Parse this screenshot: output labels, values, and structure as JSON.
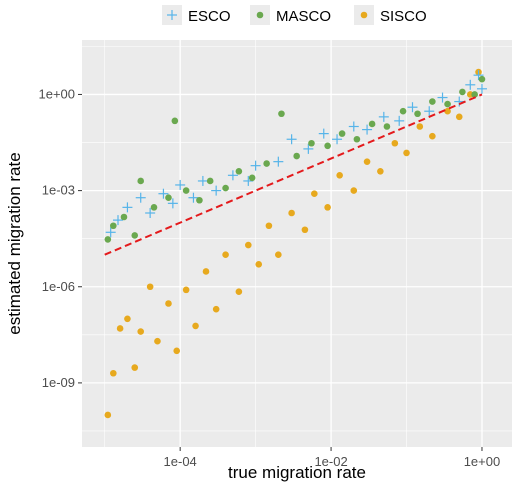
{
  "chart_data": {
    "type": "scatter",
    "title": "",
    "xlabel": "true migration rate",
    "ylabel": "estimated migration rate",
    "x_scale": "log10",
    "y_scale": "log10",
    "xlim": [
      5e-06,
      2.5
    ],
    "ylim": [
      1e-11,
      50.0
    ],
    "x_ticks": [
      {
        "value": 0.0001,
        "label": "1e-04"
      },
      {
        "value": 0.01,
        "label": "1e-02"
      },
      {
        "value": 1,
        "label": "1e+00"
      }
    ],
    "y_ticks": [
      {
        "value": 1e-09,
        "label": "1e-09"
      },
      {
        "value": 1e-06,
        "label": "1e-06"
      },
      {
        "value": 0.001,
        "label": "1e-03"
      },
      {
        "value": 1,
        "label": "1e+00"
      }
    ],
    "grid": true,
    "legend_position": "top",
    "reference_line": {
      "type": "identity",
      "style": "dashed",
      "color": "#e41a1c"
    },
    "series": [
      {
        "name": "ESCO",
        "marker": "cross",
        "color": "#56B4E9",
        "points": [
          [
            1.2e-05,
            5e-05
          ],
          [
            1.5e-05,
            0.00012
          ],
          [
            2e-05,
            0.0003
          ],
          [
            3e-05,
            0.0006
          ],
          [
            4e-05,
            0.0002
          ],
          [
            6e-05,
            0.0008
          ],
          [
            8e-05,
            0.0004
          ],
          [
            0.0001,
            0.0015
          ],
          [
            0.00015,
            0.0006
          ],
          [
            0.0002,
            0.002
          ],
          [
            0.0003,
            0.001
          ],
          [
            0.0005,
            0.003
          ],
          [
            0.0008,
            0.002
          ],
          [
            0.001,
            0.006
          ],
          [
            0.002,
            0.008
          ],
          [
            0.003,
            0.04
          ],
          [
            0.005,
            0.02
          ],
          [
            0.008,
            0.06
          ],
          [
            0.012,
            0.04
          ],
          [
            0.02,
            0.1
          ],
          [
            0.03,
            0.08
          ],
          [
            0.05,
            0.2
          ],
          [
            0.08,
            0.15
          ],
          [
            0.12,
            0.4
          ],
          [
            0.2,
            0.3
          ],
          [
            0.3,
            0.8
          ],
          [
            0.5,
            0.6
          ],
          [
            0.7,
            2
          ],
          [
            0.9,
            4
          ],
          [
            1,
            1.5
          ]
        ]
      },
      {
        "name": "MASCO",
        "marker": "circle",
        "color": "#6aa84f",
        "points": [
          [
            1.1e-05,
            3e-05
          ],
          [
            1.3e-05,
            8e-05
          ],
          [
            1.8e-05,
            0.00015
          ],
          [
            2.5e-05,
            4e-05
          ],
          [
            3e-05,
            0.002
          ],
          [
            4.5e-05,
            0.0003
          ],
          [
            7e-05,
            0.0006
          ],
          [
            8.5e-05,
            0.15
          ],
          [
            0.00012,
            0.001
          ],
          [
            0.00018,
            0.0005
          ],
          [
            0.00025,
            0.002
          ],
          [
            0.0004,
            0.0012
          ],
          [
            0.0006,
            0.004
          ],
          [
            0.0009,
            0.0025
          ],
          [
            0.0014,
            0.007
          ],
          [
            0.0022,
            0.25
          ],
          [
            0.0035,
            0.012
          ],
          [
            0.0055,
            0.03
          ],
          [
            0.009,
            0.025
          ],
          [
            0.014,
            0.06
          ],
          [
            0.022,
            0.04
          ],
          [
            0.035,
            0.12
          ],
          [
            0.055,
            0.1
          ],
          [
            0.09,
            0.3
          ],
          [
            0.14,
            0.25
          ],
          [
            0.22,
            0.6
          ],
          [
            0.35,
            0.5
          ],
          [
            0.55,
            1.2
          ],
          [
            0.8,
            1
          ],
          [
            1,
            3
          ]
        ]
      },
      {
        "name": "SISCO",
        "marker": "circle",
        "color": "#E7A91E",
        "points": [
          [
            1.1e-05,
            1e-10
          ],
          [
            1.3e-05,
            2e-09
          ],
          [
            1.6e-05,
            5e-08
          ],
          [
            2e-05,
            1e-07
          ],
          [
            2.5e-05,
            3e-09
          ],
          [
            3e-05,
            4e-08
          ],
          [
            4e-05,
            1e-06
          ],
          [
            5e-05,
            2e-08
          ],
          [
            7e-05,
            3e-07
          ],
          [
            9e-05,
            1e-08
          ],
          [
            0.00012,
            8e-07
          ],
          [
            0.00016,
            6e-08
          ],
          [
            0.00022,
            3e-06
          ],
          [
            0.0003,
            2e-07
          ],
          [
            0.0004,
            1e-05
          ],
          [
            0.0006,
            7e-07
          ],
          [
            0.0008,
            2e-05
          ],
          [
            0.0011,
            5e-06
          ],
          [
            0.0015,
            8e-05
          ],
          [
            0.002,
            1e-05
          ],
          [
            0.003,
            0.0002
          ],
          [
            0.0045,
            6e-05
          ],
          [
            0.006,
            0.0008
          ],
          [
            0.009,
            0.0003
          ],
          [
            0.013,
            0.003
          ],
          [
            0.02,
            0.001
          ],
          [
            0.03,
            0.008
          ],
          [
            0.045,
            0.004
          ],
          [
            0.07,
            0.03
          ],
          [
            0.1,
            0.015
          ],
          [
            0.15,
            0.1
          ],
          [
            0.22,
            0.05
          ],
          [
            0.35,
            0.3
          ],
          [
            0.5,
            0.2
          ],
          [
            0.7,
            1
          ],
          [
            0.9,
            5
          ]
        ]
      }
    ],
    "legend": [
      {
        "name": "ESCO",
        "marker": "cross",
        "color": "#56B4E9"
      },
      {
        "name": "MASCO",
        "marker": "circle",
        "color": "#6aa84f"
      },
      {
        "name": "SISCO",
        "marker": "circle",
        "color": "#E7A91E"
      }
    ],
    "panel_background": "#ebebeb",
    "grid_color": "#ffffff"
  }
}
